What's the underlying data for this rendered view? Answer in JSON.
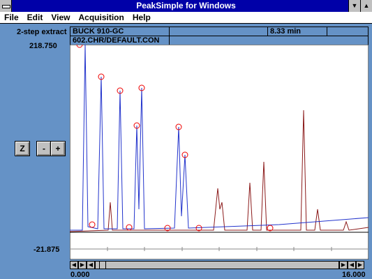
{
  "window": {
    "title": "PeakSimple for Windows"
  },
  "menu": [
    "File",
    "Edit",
    "View",
    "Acquisition",
    "Help"
  ],
  "info": {
    "sample_label": "2-step extract",
    "column": "BUCK 910-GC",
    "time": "8.33 min",
    "file": "602.CHR/DEFAULT.CON"
  },
  "axis": {
    "y_max": "218.750",
    "y_min": "-21.875",
    "x_min": "0.000",
    "x_max": "16.000"
  },
  "zoom_buttons": [
    "Z",
    "-",
    "+"
  ]
}
